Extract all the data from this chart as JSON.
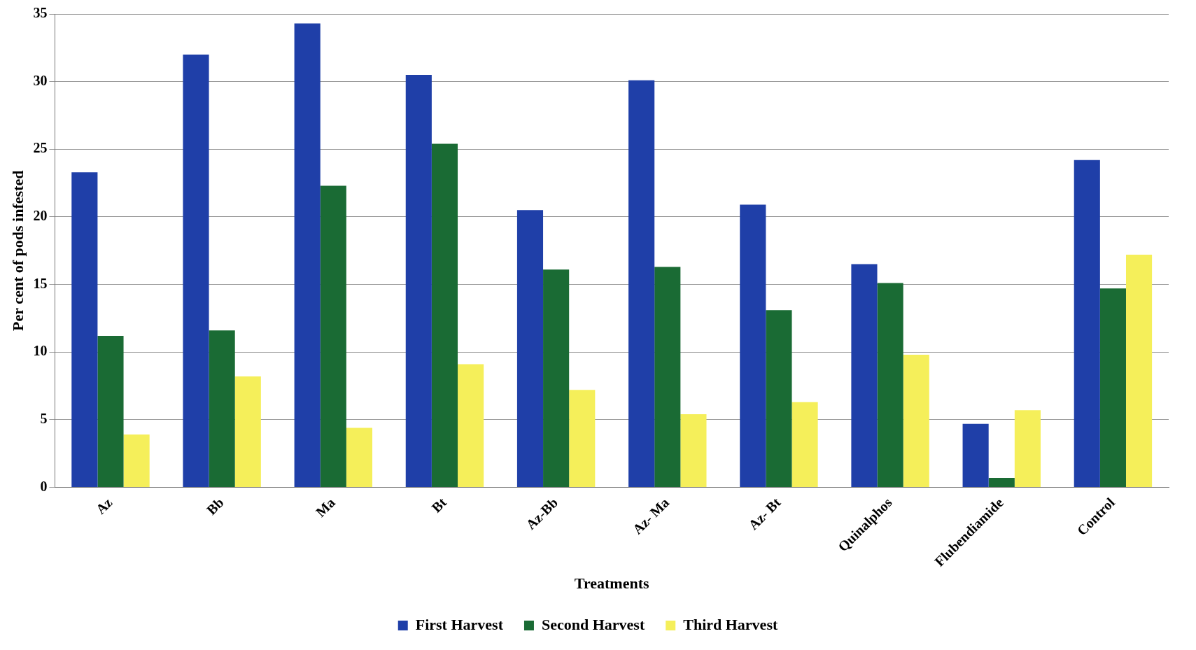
{
  "chart_data": {
    "type": "bar",
    "xlabel": "Treatments",
    "ylabel": "Per cent of pods infested",
    "categories": [
      "Az",
      "Bb",
      "Ma",
      "Bt",
      "Az-Bb",
      "Az- Ma",
      "Az- Bt",
      "Quinalphos",
      "Flubendiamide",
      "Control"
    ],
    "series": [
      {
        "name": "First Harvest",
        "color": "#1f3fa8",
        "values": [
          23.3,
          32.0,
          34.3,
          30.5,
          20.5,
          30.1,
          20.9,
          16.5,
          4.7,
          24.2
        ]
      },
      {
        "name": "Second Harvest",
        "color": "#1a6b34",
        "values": [
          11.2,
          11.6,
          22.3,
          25.4,
          16.1,
          16.3,
          13.1,
          15.1,
          0.7,
          14.7
        ]
      },
      {
        "name": "Third Harvest",
        "color": "#f5ef5a",
        "values": [
          3.9,
          8.2,
          4.4,
          9.1,
          7.2,
          5.4,
          6.3,
          9.8,
          5.7,
          17.2
        ]
      }
    ],
    "ylim": [
      0,
      35
    ],
    "yticks": [
      0,
      5,
      10,
      15,
      20,
      25,
      30,
      35
    ],
    "grid": "y",
    "legend": "bottom"
  }
}
